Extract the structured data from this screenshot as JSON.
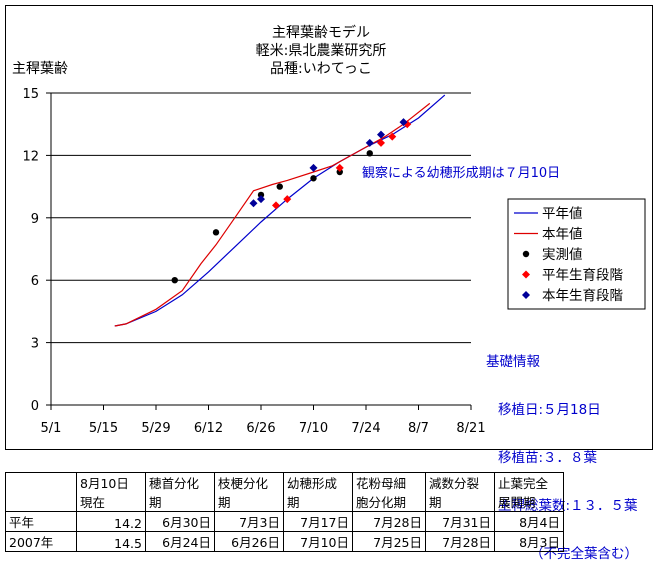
{
  "chart_data": {
    "type": "line",
    "title_lines": [
      "主稈葉齢モデル",
      "軽米:県北農業研究所",
      "品種:いわてっこ"
    ],
    "ylabel": "主稈葉齢",
    "xlabel": "",
    "ylim": [
      0,
      15
    ],
    "yticks": [
      0,
      3,
      6,
      9,
      12,
      15
    ],
    "xlim": [
      "5/1",
      "8/21"
    ],
    "xticks": [
      "5/1",
      "5/15",
      "5/29",
      "6/12",
      "6/26",
      "7/10",
      "7/24",
      "8/7",
      "8/21"
    ],
    "grid": "horizontal",
    "legend_position": "right",
    "annotation": "観察による幼穂形成期は７月10日",
    "series": [
      {
        "name": "平年値",
        "kind": "line",
        "color": "#0000cc",
        "x": [
          "5/18",
          "5/21",
          "5/29",
          "6/5",
          "6/12",
          "6/19",
          "6/26",
          "7/3",
          "7/10",
          "7/17",
          "7/24",
          "7/31",
          "8/7",
          "8/14"
        ],
        "y": [
          3.8,
          3.9,
          4.5,
          5.3,
          6.4,
          7.6,
          8.8,
          9.9,
          10.9,
          11.7,
          12.4,
          13.0,
          13.8,
          14.9
        ]
      },
      {
        "name": "本年値",
        "kind": "line",
        "color": "#dd0000",
        "x": [
          "5/18",
          "5/21",
          "5/29",
          "6/5",
          "6/10",
          "6/14",
          "6/19",
          "6/24",
          "6/29",
          "7/3",
          "7/10",
          "7/15",
          "7/19",
          "7/24",
          "7/29",
          "8/3",
          "8/10"
        ],
        "y": [
          3.8,
          3.9,
          4.6,
          5.5,
          6.8,
          7.7,
          9.0,
          10.3,
          10.6,
          10.8,
          11.2,
          11.5,
          11.9,
          12.4,
          12.9,
          13.5,
          14.5
        ]
      },
      {
        "name": "実測値",
        "kind": "point",
        "color": "#000000",
        "x": [
          "6/3",
          "6/14",
          "6/26",
          "7/1",
          "7/10",
          "7/17",
          "7/25"
        ],
        "y": [
          6.0,
          8.3,
          10.1,
          10.5,
          10.9,
          11.2,
          12.1
        ]
      },
      {
        "name": "平年生育段階",
        "kind": "point",
        "marker": "diamond",
        "color": "#ff0000",
        "x": [
          "6/30",
          "7/3",
          "7/17",
          "7/28",
          "7/31",
          "8/4"
        ],
        "y": [
          9.6,
          9.9,
          11.4,
          12.6,
          12.9,
          13.5
        ]
      },
      {
        "name": "本年生育段階",
        "kind": "point",
        "marker": "diamond",
        "color": "#000099",
        "x": [
          "6/24",
          "6/26",
          "7/10",
          "7/25",
          "7/28",
          "8/3"
        ],
        "y": [
          9.7,
          9.9,
          11.4,
          12.6,
          13.0,
          13.6
        ]
      }
    ]
  },
  "info": {
    "heading": "基礎情報",
    "lines": [
      "移植日:５月18日",
      "移植苗:３．８葉",
      "主稈総葉数:１３．５葉",
      "（不完全葉含む）"
    ]
  },
  "table": {
    "headers": [
      [
        "",
        ""
      ],
      [
        "8月10日",
        "現在"
      ],
      [
        "穂首分化",
        "期"
      ],
      [
        "枝梗分化",
        "期"
      ],
      [
        "幼穂形成",
        "期"
      ],
      [
        "花粉母細",
        "胞分化期"
      ],
      [
        "減数分裂",
        "期"
      ],
      [
        "止葉完全",
        "展開期"
      ]
    ],
    "rows": [
      [
        "平年",
        "14.2",
        "6月30日",
        "7月3日",
        "7月17日",
        "7月28日",
        "7月31日",
        "8月4日"
      ],
      [
        "2007年",
        "14.5",
        "6月24日",
        "6月26日",
        "7月10日",
        "7月25日",
        "7月28日",
        "8月3日"
      ]
    ]
  }
}
